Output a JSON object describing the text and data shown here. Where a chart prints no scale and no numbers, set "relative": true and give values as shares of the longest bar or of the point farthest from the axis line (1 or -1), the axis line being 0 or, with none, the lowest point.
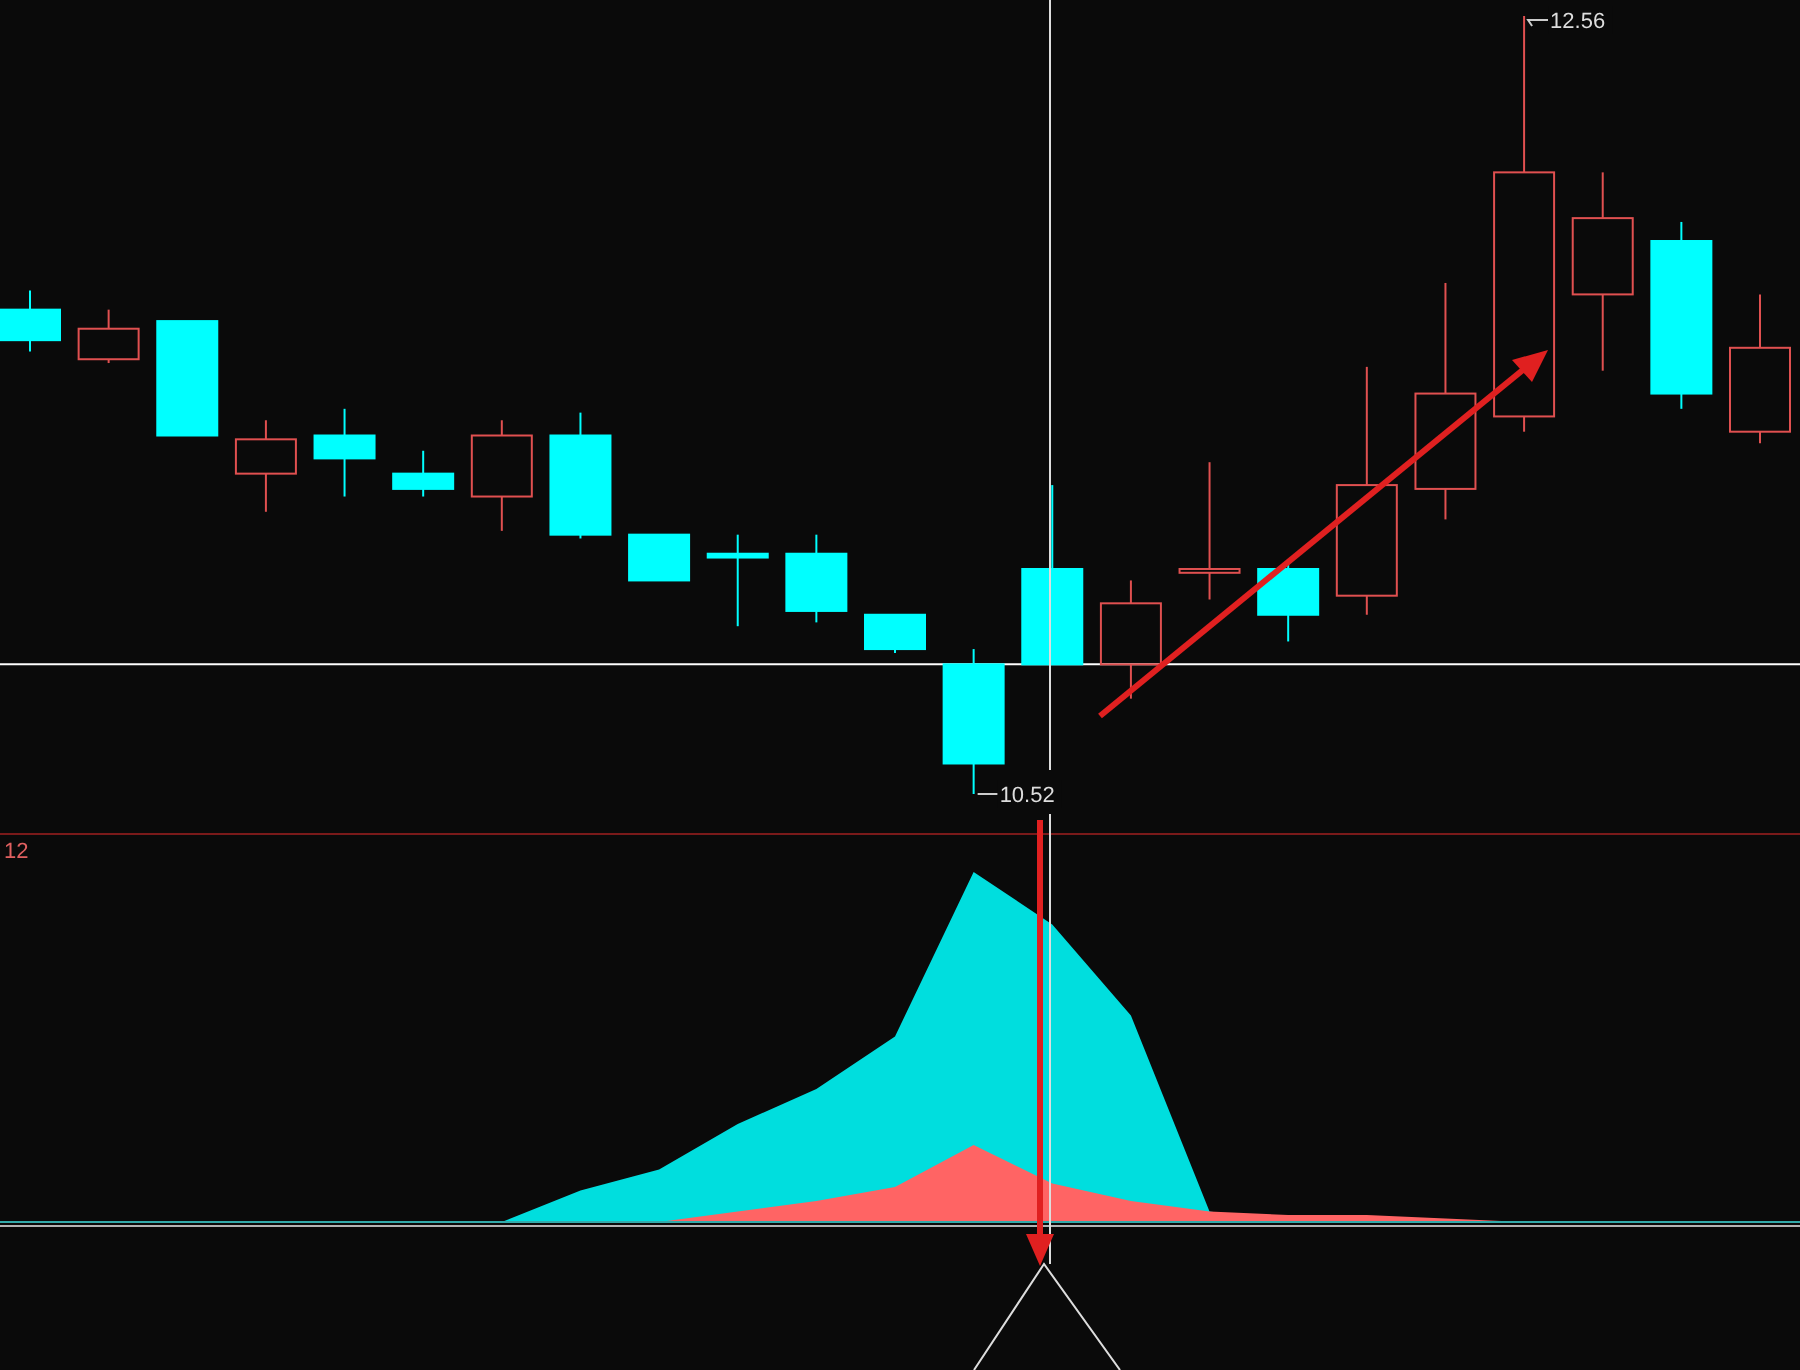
{
  "chart_data": [
    {
      "type": "candlestick",
      "categories": [
        null,
        null,
        null,
        null,
        null,
        null,
        null,
        null,
        null,
        null,
        null,
        null,
        null,
        null,
        null,
        null,
        null,
        null,
        null,
        null,
        null,
        null,
        null
      ],
      "ohlc": [
        [
          11.79,
          11.84,
          11.68,
          11.71
        ],
        [
          11.66,
          11.79,
          11.65,
          11.74
        ],
        [
          11.76,
          11.76,
          11.46,
          11.46
        ],
        [
          11.36,
          11.5,
          11.26,
          11.45
        ],
        [
          11.46,
          11.53,
          11.3,
          11.4
        ],
        [
          11.36,
          11.42,
          11.3,
          11.32
        ],
        [
          11.3,
          11.5,
          11.21,
          11.46
        ],
        [
          11.46,
          11.52,
          11.19,
          11.2
        ],
        [
          11.2,
          11.2,
          11.08,
          11.08
        ],
        [
          11.15,
          11.2,
          10.96,
          11.14
        ],
        [
          11.15,
          11.2,
          10.97,
          11.0
        ],
        [
          10.99,
          10.99,
          10.89,
          10.9
        ],
        [
          10.86,
          10.9,
          10.52,
          10.6
        ],
        [
          11.11,
          11.33,
          10.86,
          10.86
        ],
        [
          10.86,
          11.08,
          10.77,
          11.02
        ],
        [
          11.1,
          11.39,
          11.03,
          11.11
        ],
        [
          11.11,
          11.13,
          10.92,
          10.99
        ],
        [
          11.04,
          11.64,
          10.99,
          11.33
        ],
        [
          11.32,
          11.86,
          11.24,
          11.57
        ],
        [
          11.51,
          12.56,
          11.47,
          12.15
        ],
        [
          11.83,
          12.15,
          11.63,
          12.03
        ],
        [
          11.97,
          12.02,
          11.53,
          11.57
        ],
        [
          11.47,
          11.83,
          11.44,
          11.69
        ]
      ],
      "colors": [
        "#00ffff",
        "#e05050",
        "#00ffff",
        "#e05050",
        "#00ffff",
        "#00ffff",
        "#e05050",
        "#00ffff",
        "#00ffff",
        "#00ffff",
        "#00ffff",
        "#00ffff",
        "#00ffff",
        "#00ffff",
        "#e05050",
        "#e05050",
        "#00ffff",
        "#e05050",
        "#e05050",
        "#e05050",
        "#e05050",
        "#00ffff",
        "#e05050"
      ],
      "annotations": [
        "12.56",
        "10.52"
      ],
      "ref_lines": [
        {
          "axis": "y",
          "value": 10.86,
          "color": "#ffffff"
        }
      ]
    },
    {
      "type": "area",
      "relative": true,
      "categories": [
        null,
        null,
        null,
        null,
        null,
        null,
        null,
        null,
        null,
        null,
        null,
        null,
        null,
        null,
        null,
        null,
        null,
        null,
        null,
        null,
        null,
        null,
        null
      ],
      "series": [
        {
          "color": "#00dede",
          "values": [
            0,
            0,
            0,
            0,
            0,
            0,
            0,
            0.09,
            0.15,
            0.28,
            0.38,
            0.53,
            1,
            0.85,
            0.59,
            0.03,
            0,
            0,
            0,
            0,
            0,
            0,
            0
          ]
        },
        {
          "color": "#ff6464",
          "values": [
            0,
            0,
            0,
            0,
            0,
            0,
            0,
            0,
            0,
            0.03,
            0.06,
            0.1,
            0.22,
            0.11,
            0.06,
            0.03,
            0.02,
            0.02,
            0.01,
            0,
            0,
            0,
            0
          ]
        }
      ],
      "annotations": [
        "12"
      ]
    }
  ]
}
